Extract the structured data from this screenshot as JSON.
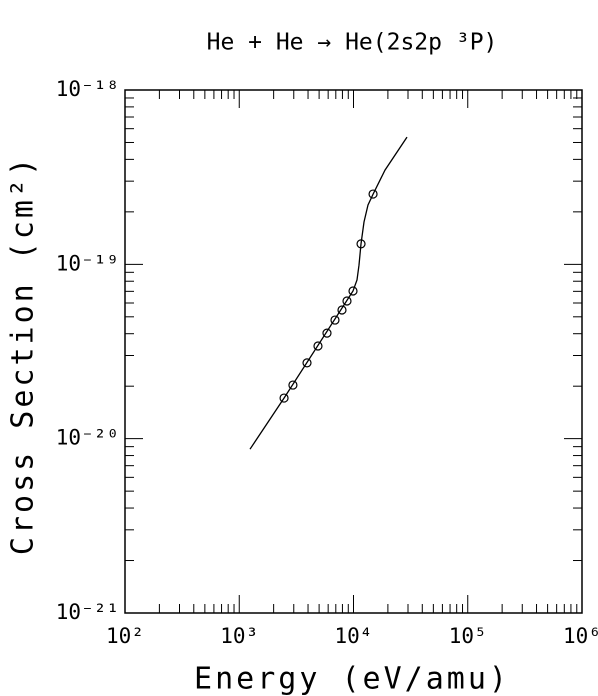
{
  "chart_data": {
    "type": "line",
    "title": "He + He → He(2s2p ³P)",
    "x_label": "Energy (eV/amu)",
    "y_label": "Cross Section (cm²)",
    "xscale": "log",
    "yscale": "log",
    "xlim": [
      100,
      1000000
    ],
    "ylim": [
      1e-21,
      1e-18
    ],
    "xticks": [
      {
        "value": 100,
        "label": "10²"
      },
      {
        "value": 1000,
        "label": "10³"
      },
      {
        "value": 10000,
        "label": "10⁴"
      },
      {
        "value": 100000,
        "label": "10⁵"
      },
      {
        "value": 1000000,
        "label": "10⁶"
      }
    ],
    "yticks": [
      {
        "value": 1e-21,
        "label": "10⁻²¹"
      },
      {
        "value": 1e-20,
        "label": "10⁻²⁰"
      },
      {
        "value": 1e-19,
        "label": "10⁻¹⁹"
      },
      {
        "value": 1e-18,
        "label": "10⁻¹⁸"
      }
    ],
    "color": "#000000",
    "series": [
      {
        "type": "line",
        "x": [
          1243,
          2467,
          9900,
          10740,
          11170,
          11640,
          12360,
          13400,
          14830,
          18880,
          29400
        ],
        "values": [
          8.7e-21,
          1.71e-20,
          7.03e-20,
          8.13e-20,
          9.9e-20,
          1.31e-19,
          1.75e-19,
          2.19e-19,
          2.53e-19,
          3.47e-19,
          5.37e-19
        ]
      },
      {
        "type": "scatter",
        "x": [
          2467,
          2950,
          3918,
          4888,
          5860,
          6886,
          7930,
          8770,
          9900,
          11640,
          14830
        ],
        "values": [
          1.71e-20,
          2.03e-20,
          2.72e-20,
          3.4e-20,
          4.03e-20,
          4.79e-20,
          5.47e-20,
          6.16e-20,
          7.03e-20,
          1.31e-19,
          2.53e-19
        ]
      }
    ]
  }
}
